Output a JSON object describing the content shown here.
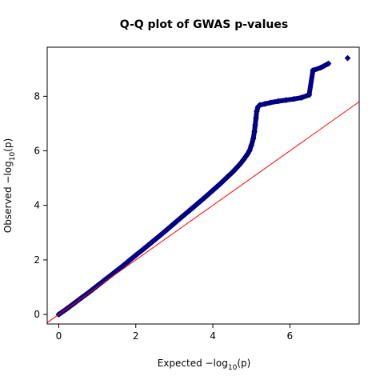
{
  "chart_data": {
    "type": "scatter",
    "title": "Q-Q plot of GWAS p-values",
    "xlabel": {
      "prefix": "Expected  −log",
      "sub": "10",
      "suffix": "(p)"
    },
    "ylabel": {
      "prefix": "Observed  −log",
      "sub": "10",
      "suffix": "(p)"
    },
    "xlim": [
      -0.3,
      7.8
    ],
    "ylim": [
      -0.35,
      9.8
    ],
    "xticks": [
      0,
      2,
      4,
      6
    ],
    "yticks": [
      0,
      2,
      4,
      6,
      8
    ],
    "grid": false,
    "reference_line": {
      "slope": 1,
      "intercept": 0,
      "color": "#ff0000"
    },
    "point_color": "#00008b",
    "point_shape": "diamond",
    "series": [
      {
        "points": [
          [
            0.0,
            0.0
          ],
          [
            0.2,
            0.2
          ],
          [
            0.4,
            0.41
          ],
          [
            0.6,
            0.62
          ],
          [
            0.8,
            0.83
          ],
          [
            1.0,
            1.05
          ],
          [
            1.2,
            1.27
          ],
          [
            1.4,
            1.49
          ],
          [
            1.6,
            1.71
          ],
          [
            1.8,
            1.94
          ],
          [
            2.0,
            2.17
          ],
          [
            2.2,
            2.4
          ],
          [
            2.4,
            2.63
          ],
          [
            2.6,
            2.86
          ],
          [
            2.8,
            3.1
          ],
          [
            3.0,
            3.34
          ],
          [
            3.2,
            3.58
          ],
          [
            3.4,
            3.82
          ],
          [
            3.6,
            4.06
          ],
          [
            3.8,
            4.3
          ],
          [
            4.0,
            4.55
          ],
          [
            4.2,
            4.8
          ],
          [
            4.4,
            5.07
          ],
          [
            4.5,
            5.2
          ],
          [
            4.6,
            5.35
          ],
          [
            4.7,
            5.5
          ],
          [
            4.8,
            5.68
          ],
          [
            4.9,
            5.88
          ],
          [
            4.95,
            6.0
          ],
          [
            5.0,
            6.2
          ],
          [
            5.05,
            6.45
          ],
          [
            5.08,
            6.7
          ],
          [
            5.1,
            6.95
          ],
          [
            5.12,
            7.2
          ],
          [
            5.14,
            7.45
          ],
          [
            5.17,
            7.6
          ],
          [
            5.22,
            7.68
          ],
          [
            5.35,
            7.72
          ],
          [
            5.5,
            7.77
          ],
          [
            5.7,
            7.82
          ],
          [
            5.9,
            7.86
          ],
          [
            6.1,
            7.9
          ],
          [
            6.3,
            7.95
          ],
          [
            6.5,
            8.05
          ],
          [
            6.6,
            8.95
          ],
          [
            6.8,
            9.05
          ],
          [
            7.0,
            9.2
          ],
          [
            7.5,
            9.4
          ]
        ]
      }
    ]
  }
}
